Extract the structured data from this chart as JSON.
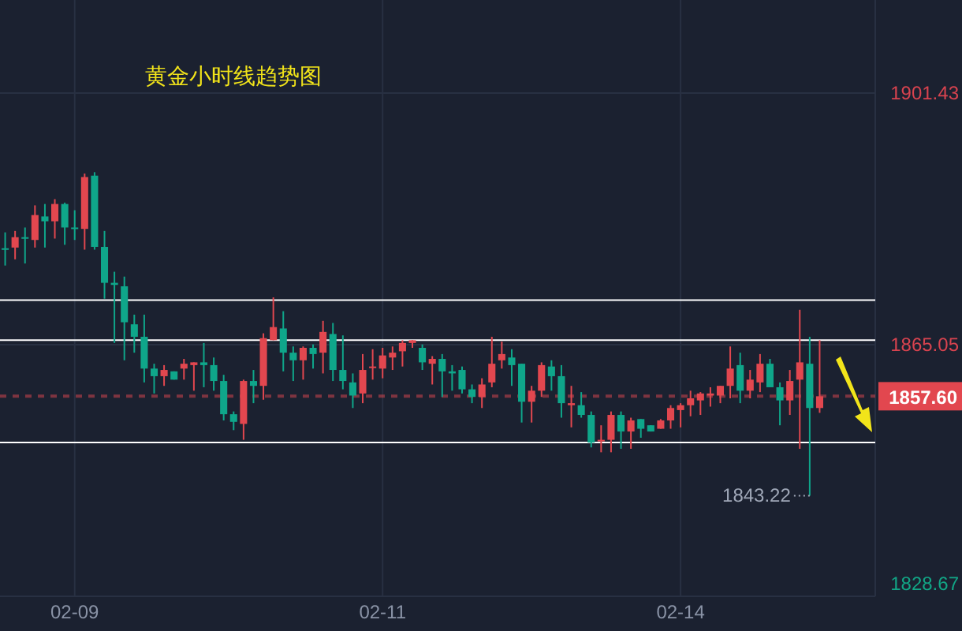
{
  "chart_data": {
    "type": "candlestick",
    "title": "黄金小时线趋势图",
    "categories": [
      null,
      null,
      null,
      null,
      null,
      null,
      null,
      "02-09",
      null,
      null,
      null,
      null,
      null,
      null,
      null,
      null,
      null,
      null,
      null,
      null,
      null,
      null,
      null,
      null,
      null,
      null,
      null,
      null,
      null,
      null,
      null,
      null,
      null,
      null,
      null,
      null,
      null,
      null,
      "02-11",
      null,
      null,
      null,
      null,
      null,
      null,
      null,
      null,
      null,
      null,
      null,
      null,
      null,
      null,
      null,
      null,
      null,
      null,
      null,
      null,
      null,
      null,
      null,
      null,
      null,
      null,
      null,
      null,
      null,
      "02-14",
      null,
      null,
      null,
      null,
      null,
      null,
      null,
      null,
      null,
      null,
      null,
      null,
      null,
      null
    ],
    "ohlc": [
      [
        1879.0,
        1881.3,
        1876.5,
        1878.8
      ],
      [
        1879.1,
        1881.5,
        1877.4,
        1880.6
      ],
      [
        1880.6,
        1882.0,
        1876.8,
        1880.5
      ],
      [
        1880.2,
        1885.2,
        1879.1,
        1883.8
      ],
      [
        1883.6,
        1885.4,
        1879.1,
        1882.9
      ],
      [
        1882.9,
        1886.1,
        1880.4,
        1885.4
      ],
      [
        1885.4,
        1885.6,
        1879.5,
        1882.0
      ],
      [
        1882.0,
        1884.5,
        1880.2,
        1881.8
      ],
      [
        1881.8,
        1889.8,
        1878.8,
        1889.3
      ],
      [
        1889.5,
        1890.0,
        1878.8,
        1879.2
      ],
      [
        1879.2,
        1881.5,
        1871.7,
        1874.0
      ],
      [
        1874.0,
        1875.6,
        1865.3,
        1873.7
      ],
      [
        1873.5,
        1874.9,
        1862.8,
        1868.3
      ],
      [
        1868.0,
        1869.4,
        1863.9,
        1866.2
      ],
      [
        1866.2,
        1869.4,
        1859.6,
        1861.6
      ],
      [
        1861.6,
        1862.3,
        1858.0,
        1860.5
      ],
      [
        1860.5,
        1862.1,
        1859.1,
        1861.4
      ],
      [
        1861.2,
        1861.2,
        1860.0,
        1860.0
      ],
      [
        1861.6,
        1863.0,
        1860.0,
        1862.3
      ],
      [
        1862.1,
        1862.5,
        1858.4,
        1862.5
      ],
      [
        1862.5,
        1865.3,
        1858.9,
        1862.1
      ],
      [
        1862.1,
        1863.2,
        1858.4,
        1859.8
      ],
      [
        1859.8,
        1860.7,
        1854.1,
        1855.0
      ],
      [
        1855.0,
        1855.4,
        1852.7,
        1853.9
      ],
      [
        1853.6,
        1860.0,
        1851.3,
        1859.8
      ],
      [
        1859.8,
        1861.4,
        1856.6,
        1859.1
      ],
      [
        1859.1,
        1866.7,
        1857.1,
        1866.0
      ],
      [
        1865.7,
        1871.9,
        1865.7,
        1867.6
      ],
      [
        1867.4,
        1869.9,
        1861.2,
        1863.9
      ],
      [
        1863.9,
        1864.8,
        1859.8,
        1862.8
      ],
      [
        1862.8,
        1864.8,
        1860.0,
        1864.6
      ],
      [
        1864.6,
        1865.1,
        1861.6,
        1863.7
      ],
      [
        1863.9,
        1868.5,
        1860.9,
        1866.9
      ],
      [
        1866.6,
        1868.2,
        1859.8,
        1861.4
      ],
      [
        1861.4,
        1866.4,
        1858.6,
        1859.8
      ],
      [
        1859.6,
        1860.9,
        1855.9,
        1857.7
      ],
      [
        1858.0,
        1863.7,
        1856.6,
        1861.4
      ],
      [
        1861.7,
        1864.4,
        1860.0,
        1861.9
      ],
      [
        1861.6,
        1864.6,
        1860.2,
        1863.5
      ],
      [
        1863.2,
        1864.8,
        1861.4,
        1863.9
      ],
      [
        1864.1,
        1865.7,
        1861.9,
        1865.3
      ],
      [
        1865.3,
        1865.7,
        1864.6,
        1865.7
      ],
      [
        1864.6,
        1865.1,
        1861.4,
        1862.5
      ],
      [
        1862.3,
        1863.4,
        1859.3,
        1863.0
      ],
      [
        1863.0,
        1863.7,
        1857.5,
        1861.2
      ],
      [
        1861.2,
        1862.1,
        1858.4,
        1860.9
      ],
      [
        1861.4,
        1861.9,
        1858.0,
        1858.6
      ],
      [
        1858.6,
        1859.3,
        1856.6,
        1857.5
      ],
      [
        1857.5,
        1860.2,
        1855.9,
        1859.3
      ],
      [
        1859.6,
        1866.2,
        1858.9,
        1862.3
      ],
      [
        1862.8,
        1865.5,
        1861.6,
        1863.7
      ],
      [
        1863.2,
        1864.4,
        1859.1,
        1862.1
      ],
      [
        1862.3,
        1862.3,
        1853.8,
        1856.8
      ],
      [
        1856.8,
        1859.1,
        1853.8,
        1858.4
      ],
      [
        1858.4,
        1862.5,
        1857.5,
        1862.1
      ],
      [
        1861.9,
        1862.8,
        1858.4,
        1860.5
      ],
      [
        1860.5,
        1862.1,
        1854.5,
        1856.6
      ],
      [
        1856.3,
        1859.1,
        1853.1,
        1856.6
      ],
      [
        1856.3,
        1858.2,
        1854.5,
        1854.9
      ],
      [
        1854.9,
        1855.4,
        1850.2,
        1850.9
      ],
      [
        1851.1,
        1853.4,
        1849.5,
        1851.3
      ],
      [
        1851.3,
        1855.4,
        1849.5,
        1854.9
      ],
      [
        1854.9,
        1855.4,
        1850.0,
        1852.5
      ],
      [
        1852.5,
        1854.5,
        1850.0,
        1854.1
      ],
      [
        1854.3,
        1854.3,
        1851.6,
        1852.9
      ],
      [
        1853.4,
        1853.4,
        1852.5,
        1852.5
      ],
      [
        1852.9,
        1854.3,
        1852.9,
        1854.1
      ],
      [
        1854.1,
        1856.3,
        1852.9,
        1855.9
      ],
      [
        1855.6,
        1856.6,
        1853.1,
        1856.3
      ],
      [
        1856.3,
        1858.4,
        1854.7,
        1857.3
      ],
      [
        1857.0,
        1858.2,
        1854.9,
        1858.0
      ],
      [
        1857.7,
        1858.9,
        1856.1,
        1858.0
      ],
      [
        1857.7,
        1859.1,
        1856.6,
        1859.1
      ],
      [
        1859.1,
        1864.8,
        1857.3,
        1861.6
      ],
      [
        1862.1,
        1863.9,
        1856.6,
        1858.4
      ],
      [
        1858.4,
        1861.4,
        1857.3,
        1860.0
      ],
      [
        1859.6,
        1863.7,
        1858.2,
        1862.3
      ],
      [
        1862.3,
        1863.0,
        1858.9,
        1858.9
      ],
      [
        1858.9,
        1859.6,
        1853.4,
        1857.0
      ],
      [
        1857.0,
        1861.4,
        1854.9,
        1859.8
      ],
      [
        1860.0,
        1870.1,
        1850.0,
        1862.5
      ],
      [
        1862.3,
        1866.2,
        1843.22,
        1855.9
      ],
      [
        1855.9,
        1865.7,
        1855.2,
        1857.6
      ]
    ],
    "colors": [
      "#0fa68a",
      "#e2474f",
      "#0fa68a",
      "#e2474f",
      "#0fa68a",
      "#e2474f",
      "#0fa68a",
      "#0fa68a",
      "#e2474f",
      "#0fa68a",
      "#0fa68a",
      "#0fa68a",
      "#0fa68a",
      "#0fa68a",
      "#0fa68a",
      "#0fa68a",
      "#e2474f",
      "#0fa68a",
      "#e2474f",
      "#e2474f",
      "#0fa68a",
      "#0fa68a",
      "#0fa68a",
      "#0fa68a",
      "#e2474f",
      "#0fa68a",
      "#e2474f",
      "#e2474f",
      "#0fa68a",
      "#0fa68a",
      "#e2474f",
      "#0fa68a",
      "#e2474f",
      "#0fa68a",
      "#0fa68a",
      "#0fa68a",
      "#e2474f",
      "#e2474f",
      "#e2474f",
      "#e2474f",
      "#e2474f",
      "#e2474f",
      "#0fa68a",
      "#e2474f",
      "#0fa68a",
      "#0fa68a",
      "#0fa68a",
      "#0fa68a",
      "#e2474f",
      "#e2474f",
      "#e2474f",
      "#0fa68a",
      "#0fa68a",
      "#e2474f",
      "#e2474f",
      "#0fa68a",
      "#0fa68a",
      "#e2474f",
      "#0fa68a",
      "#0fa68a",
      "#e2474f",
      "#e2474f",
      "#0fa68a",
      "#e2474f",
      "#0fa68a",
      "#0fa68a",
      "#e2474f",
      "#e2474f",
      "#e2474f",
      "#e2474f",
      "#e2474f",
      "#e2474f",
      "#e2474f",
      "#e2474f",
      "#0fa68a",
      "#e2474f",
      "#e2474f",
      "#0fa68a",
      "#0fa68a",
      "#e2474f",
      "#e2474f",
      "#0fa68a",
      "#e2474f"
    ],
    "ylim": [
      1828.67,
      1914.9
    ],
    "yticks": [
      1901.43,
      1865.05,
      1828.67
    ],
    "grid": true,
    "ref_lines": [
      {
        "axis": "y",
        "value": 1871.5,
        "color": "#ffffff",
        "line_style": "solid"
      },
      {
        "axis": "y",
        "value": 1865.7,
        "color": "#ffffff",
        "line_style": "solid"
      },
      {
        "axis": "y",
        "value": 1850.9,
        "color": "#ffffff",
        "line_style": "solid"
      },
      {
        "axis": "y",
        "value": 1857.6,
        "label": "1857.60",
        "color": "#e2474f",
        "line_style": "dashed"
      }
    ],
    "annotations": [
      "1843.22"
    ]
  }
}
